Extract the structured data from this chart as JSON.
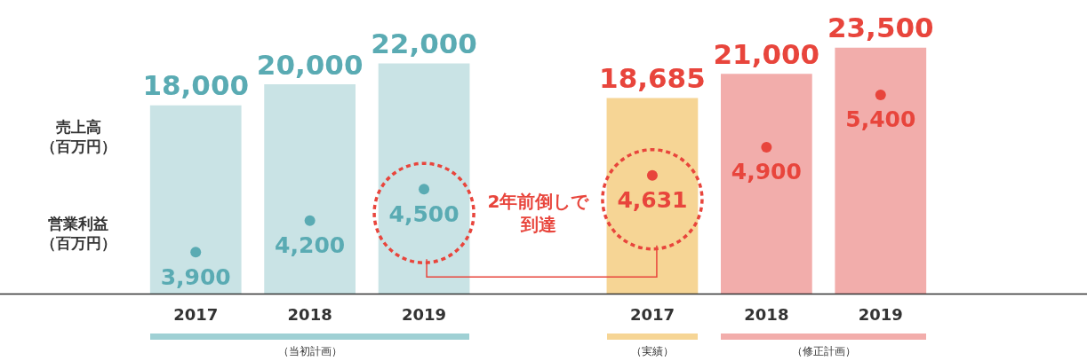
{
  "chart_data": {
    "type": "bar",
    "categories": [
      "2017",
      "2018",
      "2019",
      null,
      "2017",
      "2018",
      "2019"
    ],
    "ylabel": "売上高（百万円）",
    "y2label": "営業利益（百万円）",
    "series": [
      {
        "colors": [
          "#c9e3e5",
          "#c9e3e5",
          "#c9e3e5",
          null,
          "#f6d595",
          "#f2adab",
          "#f2adab"
        ],
        "values": [
          18000,
          20000,
          22000,
          null,
          18685,
          21000,
          23500
        ],
        "value_labels": [
          "18,000",
          "20,000",
          "22,000",
          null,
          "18,685",
          "21,000",
          "23,500"
        ]
      },
      {
        "type": "scatter",
        "axis": "y2",
        "colors": [
          "#5aabb3",
          "#5aabb3",
          "#5aabb3",
          null,
          "#e8453c",
          "#e8453c",
          "#e8453c"
        ],
        "values": [
          3900,
          4200,
          4500,
          null,
          4631,
          4900,
          5400
        ],
        "value_labels": [
          "3,900",
          "4,200",
          "4,500",
          null,
          "4,631",
          "4,900",
          "5,400"
        ]
      }
    ],
    "tick_labels": "x",
    "marker": "circle",
    "grid": false,
    "legend": false,
    "annotations": [
      "2年前倒しで到達",
      "（当初計画）",
      "（実績）",
      "（修正計画）"
    ]
  }
}
